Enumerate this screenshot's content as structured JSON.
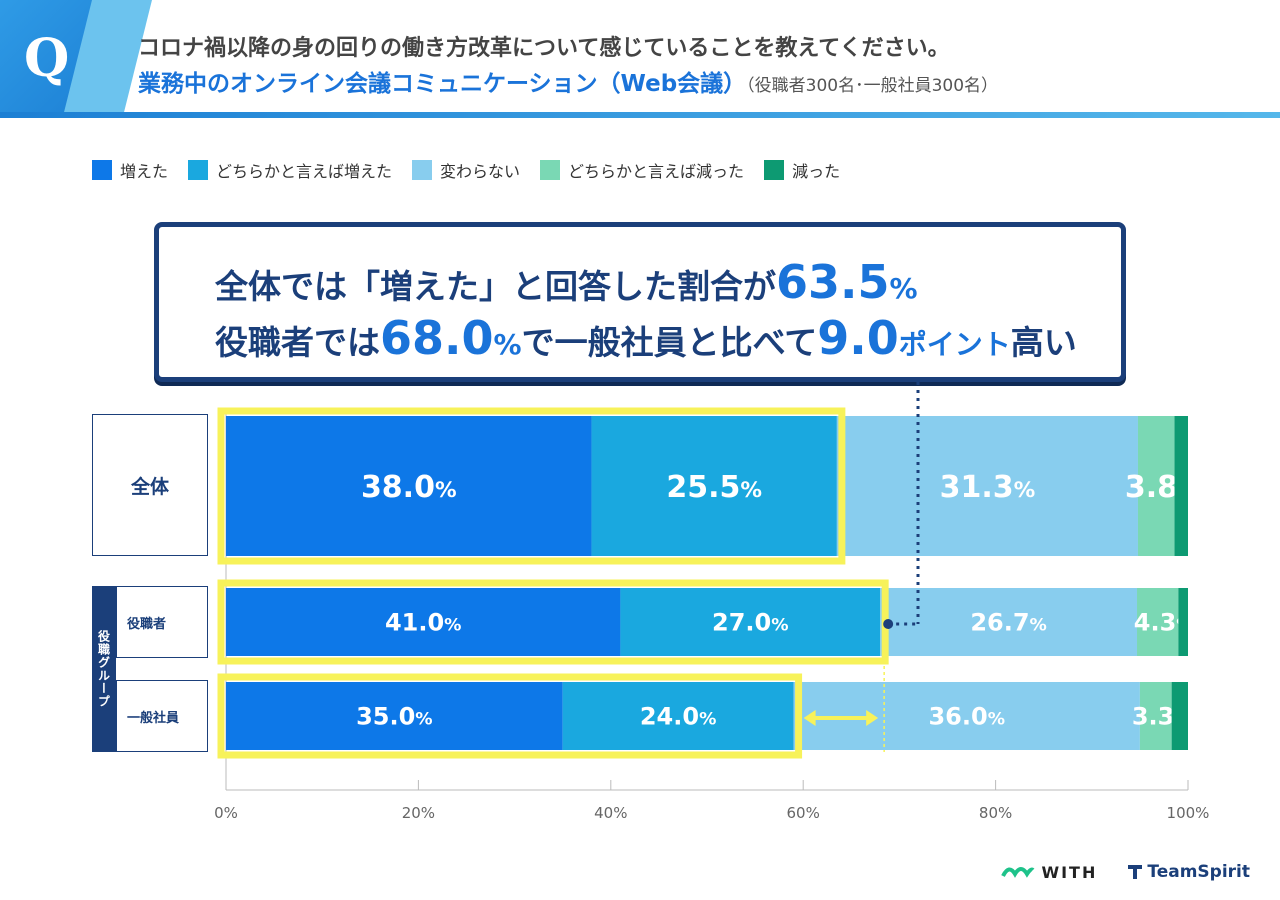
{
  "header": {
    "q_label": "Q",
    "title_line1": "コロナ禍以降の身の回りの働き方改革について感じていることを教えてください。",
    "title_line2": "業務中のオンライン会議コミュニケーション（Web会議）",
    "title_note": "（役職者300名･一般社員300名）"
  },
  "legend": [
    {
      "label": "増えた",
      "color": "#0d78e8"
    },
    {
      "label": "どちらかと言えば増えた",
      "color": "#1aa8df"
    },
    {
      "label": "変わらない",
      "color": "#88cdee"
    },
    {
      "label": "どちらかと言えば減った",
      "color": "#7ad8b4"
    },
    {
      "label": "減った",
      "color": "#0d9a72"
    }
  ],
  "callout": {
    "line1_pre": "全体では「増えた」と回答した割合が",
    "line1_num": "63.5",
    "line1_pct": "%",
    "line2_a": "役職者では",
    "line2_num1": "68.0",
    "line2_pct1": "%",
    "line2_b": "で一般社員と比べて",
    "line2_num2": "9.0",
    "line2_c": "ポイント",
    "line2_d": "高い"
  },
  "row_labels": {
    "overall": "全体",
    "group": "役職グループ",
    "manager": "役職者",
    "employee": "一般社員"
  },
  "chart_data": {
    "type": "bar",
    "orientation": "horizontal-stacked-100",
    "categories": [
      "全体",
      "役職者",
      "一般社員"
    ],
    "series": [
      {
        "name": "増えた",
        "values": [
          38.0,
          41.0,
          35.0
        ]
      },
      {
        "name": "どちらかと言えば増えた",
        "values": [
          25.5,
          27.0,
          24.0
        ]
      },
      {
        "name": "変わらない",
        "values": [
          31.3,
          26.7,
          36.0
        ]
      },
      {
        "name": "どちらかと言えば減った",
        "values": [
          3.8,
          4.3,
          3.3
        ]
      },
      {
        "name": "減った",
        "values": [
          1.4,
          1.0,
          1.7
        ]
      }
    ],
    "labels": [
      [
        "38.0%",
        "25.5%",
        "31.3%",
        "3.8%"
      ],
      [
        "41.0%",
        "27.0%",
        "26.7%",
        "4.3%"
      ],
      [
        "35.0%",
        "24.0%",
        "36.0%",
        "3.3%"
      ]
    ],
    "xticks": [
      "0%",
      "20%",
      "40%",
      "60%",
      "80%",
      "100%"
    ],
    "xlim": [
      0,
      100
    ]
  },
  "logos": {
    "with": "WITH",
    "teamspirit": "TeamSpirit"
  }
}
